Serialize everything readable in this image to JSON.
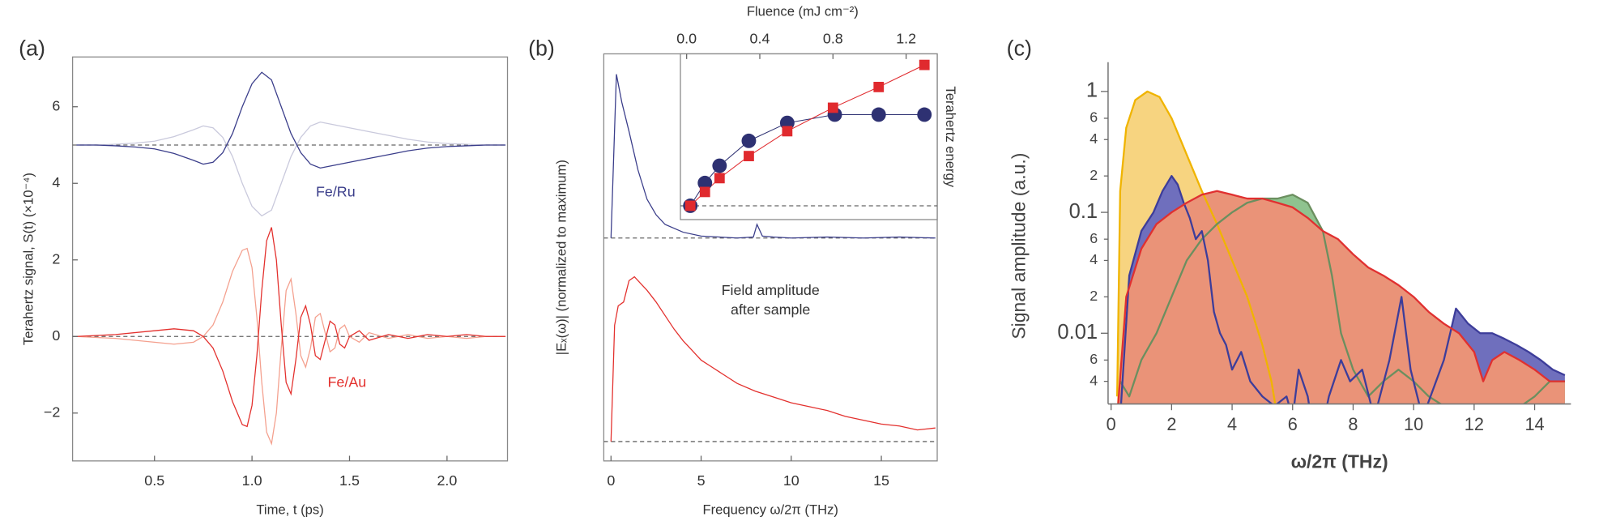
{
  "chart_data": [
    {
      "type": "line",
      "panel_label": "(a)",
      "xlabel": "Time, t (ps)",
      "ylabel": "Terahertz signal, S(t) (×10⁻⁴)",
      "xlim": [
        0.08,
        2.31
      ],
      "ylim": [
        -3.25,
        7.3
      ],
      "xticks": [
        0.5,
        {
          "value": 1,
          "label": "1.0"
        },
        1.5,
        {
          "value": 2,
          "label": "2.0"
        }
      ],
      "yticks": [
        {
          "value": -2,
          "label": "−2"
        },
        0,
        2,
        4,
        6
      ],
      "reference_lines": [
        5,
        0
      ],
      "annotations": [
        "Fe/Ru",
        "Fe/Au"
      ],
      "series": [
        {
          "color": "#c9c9dc",
          "x": [
            0.1,
            0.2,
            0.3,
            0.4,
            0.5,
            0.6,
            0.7,
            0.75,
            0.8,
            0.85,
            0.9,
            0.95,
            1.0,
            1.05,
            1.1,
            1.15,
            1.2,
            1.25,
            1.3,
            1.35,
            1.4,
            1.5,
            1.6,
            1.7,
            1.8,
            1.9,
            2.0,
            2.1,
            2.2,
            2.3
          ],
          "values": [
            5,
            5,
            5.02,
            5.05,
            5.1,
            5.22,
            5.4,
            5.5,
            5.45,
            5.2,
            4.7,
            4.0,
            3.4,
            3.15,
            3.3,
            4.0,
            4.7,
            5.2,
            5.5,
            5.6,
            5.55,
            5.45,
            5.35,
            5.25,
            5.15,
            5.08,
            5.04,
            5.02,
            5,
            5
          ]
        },
        {
          "color": "#3a3d8a",
          "x": [
            0.1,
            0.2,
            0.3,
            0.4,
            0.5,
            0.6,
            0.7,
            0.75,
            0.8,
            0.85,
            0.9,
            0.95,
            1.0,
            1.05,
            1.1,
            1.15,
            1.2,
            1.25,
            1.3,
            1.35,
            1.4,
            1.5,
            1.6,
            1.7,
            1.8,
            1.9,
            2.0,
            2.1,
            2.2,
            2.3
          ],
          "values": [
            5,
            5,
            4.98,
            4.95,
            4.9,
            4.78,
            4.6,
            4.5,
            4.55,
            4.8,
            5.3,
            6.0,
            6.6,
            6.9,
            6.7,
            6.0,
            5.3,
            4.8,
            4.5,
            4.4,
            4.45,
            4.55,
            4.65,
            4.75,
            4.85,
            4.92,
            4.96,
            4.98,
            5,
            5
          ]
        },
        {
          "color": "#f4a08e",
          "x": [
            0.1,
            0.3,
            0.5,
            0.6,
            0.7,
            0.75,
            0.8,
            0.85,
            0.9,
            0.95,
            0.975,
            1.0,
            1.025,
            1.05,
            1.075,
            1.1,
            1.125,
            1.15,
            1.175,
            1.2,
            1.225,
            1.25,
            1.275,
            1.3,
            1.325,
            1.35,
            1.375,
            1.4,
            1.425,
            1.45,
            1.475,
            1.5,
            1.55,
            1.6,
            1.7,
            1.8,
            1.9,
            2.0,
            2.1,
            2.2,
            2.3
          ],
          "values": [
            0,
            -0.05,
            -0.15,
            -0.2,
            -0.15,
            0,
            0.3,
            0.9,
            1.7,
            2.25,
            2.3,
            1.8,
            0.5,
            -1.2,
            -2.5,
            -2.8,
            -2.0,
            -0.3,
            1.2,
            1.5,
            0.6,
            -0.5,
            -0.8,
            -0.3,
            0.5,
            0.6,
            0.1,
            -0.4,
            -0.3,
            0.2,
            0.3,
            0,
            -0.15,
            0.1,
            -0.05,
            0.05,
            -0.05,
            0,
            -0.05,
            0,
            0
          ]
        },
        {
          "color": "#e3302d",
          "x": [
            0.1,
            0.3,
            0.5,
            0.6,
            0.7,
            0.75,
            0.8,
            0.85,
            0.9,
            0.95,
            0.975,
            1.0,
            1.025,
            1.05,
            1.075,
            1.1,
            1.125,
            1.15,
            1.175,
            1.2,
            1.225,
            1.25,
            1.275,
            1.3,
            1.325,
            1.35,
            1.375,
            1.4,
            1.425,
            1.45,
            1.475,
            1.5,
            1.55,
            1.6,
            1.7,
            1.8,
            1.9,
            2.0,
            2.1,
            2.2,
            2.3
          ],
          "values": [
            0,
            0.05,
            0.15,
            0.2,
            0.15,
            0,
            -0.3,
            -0.9,
            -1.7,
            -2.3,
            -2.35,
            -1.8,
            -0.5,
            1.2,
            2.5,
            2.85,
            2.0,
            0.3,
            -1.2,
            -1.5,
            -0.6,
            0.5,
            0.8,
            0.3,
            -0.5,
            -0.6,
            -0.1,
            0.4,
            0.3,
            -0.2,
            -0.3,
            0,
            0.15,
            -0.1,
            0.05,
            -0.05,
            0.05,
            0,
            0.05,
            0,
            0
          ]
        }
      ]
    },
    {
      "type": "line",
      "panel_label": "(b)",
      "xlabel": "Frequency ω/2π (THz)",
      "ylabel": "|Eₓ(ω)| (normalized to maximum)",
      "xlim": [
        -0.4,
        18.1
      ],
      "ylim": [
        -0.1,
        2.0
      ],
      "xticks": [
        0,
        5,
        10,
        15
      ],
      "reference_lines": [
        1.05,
        0
      ],
      "annotations": [
        "Field amplitude",
        "after sample"
      ],
      "series": [
        {
          "color": "#3a3d8a",
          "x": [
            0,
            0.3,
            0.6,
            1.0,
            1.5,
            2,
            2.5,
            3,
            4,
            5,
            6,
            7,
            7.9,
            8.1,
            8.4,
            9,
            10,
            12,
            14,
            16,
            18
          ],
          "values": [
            1.05,
            1.895,
            1.75,
            1.6,
            1.4,
            1.25,
            1.17,
            1.12,
            1.08,
            1.06,
            1.055,
            1.05,
            1.055,
            1.12,
            1.06,
            1.055,
            1.05,
            1.055,
            1.05,
            1.055,
            1.05
          ]
        },
        {
          "color": "#e3302d",
          "x": [
            0,
            0.2,
            0.4,
            0.7,
            1.0,
            1.3,
            1.6,
            2,
            2.5,
            3,
            3.5,
            4,
            4.5,
            5,
            5.5,
            6,
            6.5,
            7,
            8,
            9,
            10,
            11,
            12,
            13,
            14,
            15,
            16,
            17,
            18
          ],
          "values": [
            0,
            0.6,
            0.7,
            0.72,
            0.83,
            0.85,
            0.82,
            0.78,
            0.72,
            0.65,
            0.58,
            0.52,
            0.47,
            0.42,
            0.39,
            0.36,
            0.33,
            0.3,
            0.26,
            0.23,
            0.2,
            0.18,
            0.16,
            0.13,
            0.11,
            0.09,
            0.08,
            0.06,
            0.07
          ]
        }
      ]
    },
    {
      "type": "scatter",
      "xlabel": "Fluence (mJ cm⁻²)",
      "ylabel": "Terahertz energy",
      "xlim": [
        -0.034,
        1.37
      ],
      "ylim": [
        -0.1,
        1.1
      ],
      "xticks": [
        {
          "value": 0,
          "label": "0.0"
        },
        0.4,
        0.8,
        1.2
      ],
      "reference_lines": [
        0
      ],
      "series": [
        {
          "color": "#2e3172",
          "marker": "circle",
          "x": [
            0.02,
            0.1,
            0.18,
            0.34,
            0.55,
            0.81,
            1.05,
            1.3
          ],
          "values": [
            0,
            0.165,
            0.29,
            0.47,
            0.6,
            0.66,
            0.66,
            0.66
          ]
        },
        {
          "color": "#e02a2e",
          "marker": "square",
          "x": [
            0.02,
            0.1,
            0.18,
            0.34,
            0.55,
            0.8,
            1.05,
            1.3
          ],
          "values": [
            0,
            0.1,
            0.2,
            0.36,
            0.54,
            0.71,
            0.86,
            1.02
          ]
        }
      ]
    },
    {
      "type": "area",
      "panel_label": "(c)",
      "xlabel": "ω/2π (THz)",
      "ylabel": "Signal amplitude (a.u.)",
      "log_y": true,
      "xlim": [
        -0.1,
        15.2
      ],
      "ylim": [
        0.0026,
        1.3
      ],
      "xticks": [
        0,
        2,
        4,
        6,
        8,
        10,
        12,
        14
      ],
      "yticks": [
        1,
        {
          "value": 0.6,
          "label": "6"
        },
        {
          "value": 0.4,
          "label": "4"
        },
        {
          "value": 0.2,
          "label": "2"
        },
        0.1,
        {
          "value": 0.06,
          "label": "6"
        },
        {
          "value": 0.04,
          "label": "4"
        },
        {
          "value": 0.02,
          "label": "2"
        },
        0.01,
        {
          "value": 0.006,
          "label": "6"
        },
        {
          "value": 0.004,
          "label": "4"
        }
      ],
      "series": [
        {
          "color": "#f0b400",
          "fill": "#f7d480",
          "x": [
            0.2,
            0.3,
            0.5,
            0.8,
            1.2,
            1.6,
            2.0,
            2.5,
            3.0,
            3.5,
            4.0,
            4.5,
            5.0,
            5.3,
            5.5
          ],
          "values": [
            0.003,
            0.15,
            0.5,
            0.85,
            1.0,
            0.9,
            0.6,
            0.3,
            0.15,
            0.08,
            0.04,
            0.02,
            0.008,
            0.004,
            0.002
          ]
        },
        {
          "color": "#3d3d9a",
          "fill": "#6f6fbd",
          "x": [
            0.3,
            0.6,
            1.0,
            1.4,
            1.7,
            2.0,
            2.2,
            2.4,
            2.6,
            2.8,
            3.0,
            3.2,
            3.4,
            3.6,
            3.8,
            4.0,
            4.3,
            4.6,
            5.0,
            5.4,
            5.8,
            6.0,
            6.2,
            6.5,
            6.8,
            7.2,
            7.6,
            7.9,
            8.3,
            8.7,
            9.2,
            9.6,
            9.9,
            10.3,
            11.0,
            11.4,
            11.8,
            12.2,
            12.6,
            13.0,
            13.4,
            13.8,
            14.2,
            14.6,
            15.0
          ],
          "values": [
            0.002,
            0.03,
            0.07,
            0.1,
            0.15,
            0.2,
            0.17,
            0.12,
            0.09,
            0.06,
            0.07,
            0.04,
            0.015,
            0.01,
            0.008,
            0.005,
            0.007,
            0.004,
            0.003,
            0.0025,
            0.003,
            0.002,
            0.005,
            0.003,
            0.001,
            0.003,
            0.006,
            0.004,
            0.005,
            0.002,
            0.006,
            0.02,
            0.005,
            0.002,
            0.006,
            0.016,
            0.012,
            0.01,
            0.01,
            0.009,
            0.008,
            0.007,
            0.006,
            0.005,
            0.0045
          ]
        },
        {
          "color": "#6b8f5f",
          "fill": "#8fc38f",
          "x": [
            0.3,
            0.6,
            1.0,
            1.5,
            2.0,
            2.5,
            3.0,
            3.5,
            4.0,
            4.5,
            5.0,
            5.5,
            6.0,
            6.5,
            7.0,
            7.3,
            7.6,
            8.0,
            8.5,
            9.0,
            9.5,
            10.0,
            10.5,
            11.0,
            11.5,
            12.0,
            13.0,
            14.0,
            14.5,
            15.0
          ],
          "values": [
            0.004,
            0.003,
            0.006,
            0.01,
            0.02,
            0.04,
            0.06,
            0.08,
            0.1,
            0.12,
            0.13,
            0.13,
            0.14,
            0.12,
            0.07,
            0.03,
            0.01,
            0.005,
            0.003,
            0.004,
            0.005,
            0.004,
            0.003,
            0.0025,
            0.002,
            0.0025,
            0.002,
            0.003,
            0.004,
            0.004
          ]
        },
        {
          "color": "#e03030",
          "fill": "#ea9378",
          "x": [
            0.2,
            0.5,
            1.0,
            1.5,
            2.0,
            2.5,
            3.0,
            3.5,
            4.0,
            4.5,
            5.0,
            5.5,
            6.0,
            6.5,
            7.0,
            7.5,
            8.0,
            8.5,
            9.0,
            9.5,
            10.0,
            10.5,
            11.0,
            11.5,
            12.0,
            12.3,
            12.6,
            13.0,
            13.5,
            14.0,
            14.5,
            15.0
          ],
          "values": [
            0.002,
            0.02,
            0.05,
            0.08,
            0.1,
            0.12,
            0.14,
            0.15,
            0.14,
            0.13,
            0.13,
            0.12,
            0.11,
            0.09,
            0.07,
            0.06,
            0.045,
            0.035,
            0.03,
            0.025,
            0.02,
            0.015,
            0.012,
            0.01,
            0.007,
            0.004,
            0.006,
            0.007,
            0.006,
            0.005,
            0.004,
            0.004
          ]
        }
      ]
    }
  ]
}
